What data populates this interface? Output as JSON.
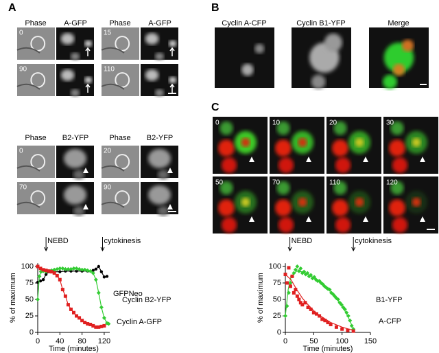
{
  "panel_labels": [
    "A",
    "B",
    "C"
  ],
  "panel_a": {
    "top_headers": [
      "Phase",
      "A-GFP",
      "Phase",
      "A-GFP"
    ],
    "top_times": [
      "0",
      "15",
      "90",
      "110"
    ],
    "bottom_headers": [
      "Phase",
      "B2-YFP",
      "Phase",
      "B2-YFP"
    ],
    "bottom_times": [
      "0",
      "20",
      "70",
      "90"
    ]
  },
  "panel_b": {
    "headers": [
      "Cyclin A-CFP",
      "Cyclin B1-YFP",
      "Merge"
    ]
  },
  "panel_c": {
    "times": [
      "0",
      "10",
      "20",
      "30",
      "50",
      "70",
      "110",
      "120"
    ]
  },
  "chart_data": [
    {
      "type": "line",
      "xlabel": "Time (minutes)",
      "ylabel": "% of maximum",
      "xlim": [
        0,
        130
      ],
      "ylim": [
        0,
        105
      ],
      "xticks": [
        0,
        40,
        80,
        120
      ],
      "yticks": [
        0,
        25,
        50,
        75,
        100
      ],
      "annotations": [
        {
          "text": "NEBD",
          "x": 15
        },
        {
          "text": "cytokinesis",
          "x": 117
        }
      ],
      "series": [
        {
          "name": "GFPNeo",
          "color": "#000000",
          "marker": "circle",
          "x": [
            0,
            5,
            10,
            15,
            20,
            30,
            40,
            50,
            60,
            70,
            80,
            90,
            100,
            105,
            110,
            115,
            120,
            125
          ],
          "values": [
            76,
            78,
            80,
            88,
            92,
            92,
            92,
            93,
            93,
            93,
            93,
            93,
            94,
            96,
            100,
            92,
            84,
            85
          ]
        },
        {
          "name": "Cyclin B2-YFP",
          "color": "#33cc33",
          "marker": "diamond",
          "x": [
            0,
            3,
            6,
            10,
            15,
            20,
            25,
            30,
            35,
            40,
            45,
            50,
            55,
            60,
            65,
            70,
            75,
            80,
            85,
            90,
            95,
            100,
            105,
            110,
            115,
            120,
            125,
            128
          ],
          "values": [
            50,
            85,
            92,
            93,
            92,
            93,
            94,
            95,
            96,
            97,
            97,
            96,
            96,
            96,
            97,
            97,
            96,
            95,
            95,
            94,
            93,
            90,
            80,
            60,
            38,
            22,
            14,
            13
          ]
        },
        {
          "name": "Cyclin A-GFP",
          "color": "#e02020",
          "marker": "square",
          "x": [
            0,
            5,
            10,
            15,
            20,
            25,
            30,
            35,
            40,
            45,
            50,
            55,
            60,
            65,
            70,
            75,
            80,
            85,
            90,
            95,
            100,
            105,
            110,
            115,
            120
          ],
          "values": [
            100,
            97,
            95,
            94,
            93,
            92,
            90,
            86,
            80,
            65,
            55,
            42,
            35,
            30,
            25,
            22,
            18,
            15,
            13,
            12,
            10,
            8,
            8,
            9,
            10
          ]
        }
      ]
    },
    {
      "type": "scatter",
      "xlabel": "Time (minutes)",
      "ylabel": "% of maximum",
      "xlim": [
        0,
        150
      ],
      "ylim": [
        0,
        105
      ],
      "xticks": [
        0,
        50,
        100,
        150
      ],
      "yticks": [
        0,
        25,
        50,
        75,
        100
      ],
      "annotations": [
        {
          "text": "NEBD",
          "x": 8
        },
        {
          "text": "cytokinesis",
          "x": 120
        }
      ],
      "series": [
        {
          "name": "B1-YFP",
          "color": "#33cc33",
          "marker": "diamond",
          "x": [
            0,
            3,
            6,
            9,
            12,
            15,
            18,
            21,
            24,
            27,
            30,
            33,
            36,
            39,
            42,
            45,
            48,
            51,
            54,
            57,
            60,
            63,
            66,
            69,
            72,
            75,
            78,
            81,
            84,
            87,
            90,
            93,
            96,
            99,
            102,
            105,
            108,
            111,
            114,
            117,
            120
          ],
          "values": [
            25,
            40,
            60,
            75,
            85,
            90,
            95,
            100,
            93,
            97,
            90,
            92,
            88,
            90,
            85,
            87,
            82,
            84,
            80,
            78,
            78,
            75,
            73,
            70,
            68,
            66,
            65,
            60,
            58,
            55,
            52,
            50,
            45,
            42,
            38,
            35,
            30,
            25,
            18,
            10,
            5
          ],
          "fit": {
            "x": [
              0,
              5,
              10,
              20,
              30,
              40,
              60,
              80,
              100,
              110,
              120
            ],
            "values": [
              25,
              65,
              85,
              93,
              92,
              88,
              78,
              62,
              40,
              25,
              5
            ]
          }
        },
        {
          "name": "A-CFP",
          "color": "#e02020",
          "marker": "square",
          "x": [
            0,
            3,
            6,
            9,
            12,
            15,
            18,
            21,
            24,
            27,
            30,
            35,
            40,
            45,
            50,
            55,
            60,
            65,
            70,
            75,
            80,
            90,
            100,
            110,
            120
          ],
          "values": [
            88,
            75,
            98,
            70,
            85,
            60,
            65,
            55,
            50,
            45,
            42,
            45,
            38,
            35,
            30,
            28,
            25,
            20,
            18,
            15,
            12,
            8,
            5,
            3,
            2
          ],
          "fit": {
            "x": [
              0,
              10,
              20,
              30,
              40,
              50,
              60,
              80,
              100,
              120
            ],
            "values": [
              88,
              80,
              65,
              52,
              42,
              33,
              26,
              15,
              8,
              3
            ]
          }
        }
      ]
    }
  ]
}
